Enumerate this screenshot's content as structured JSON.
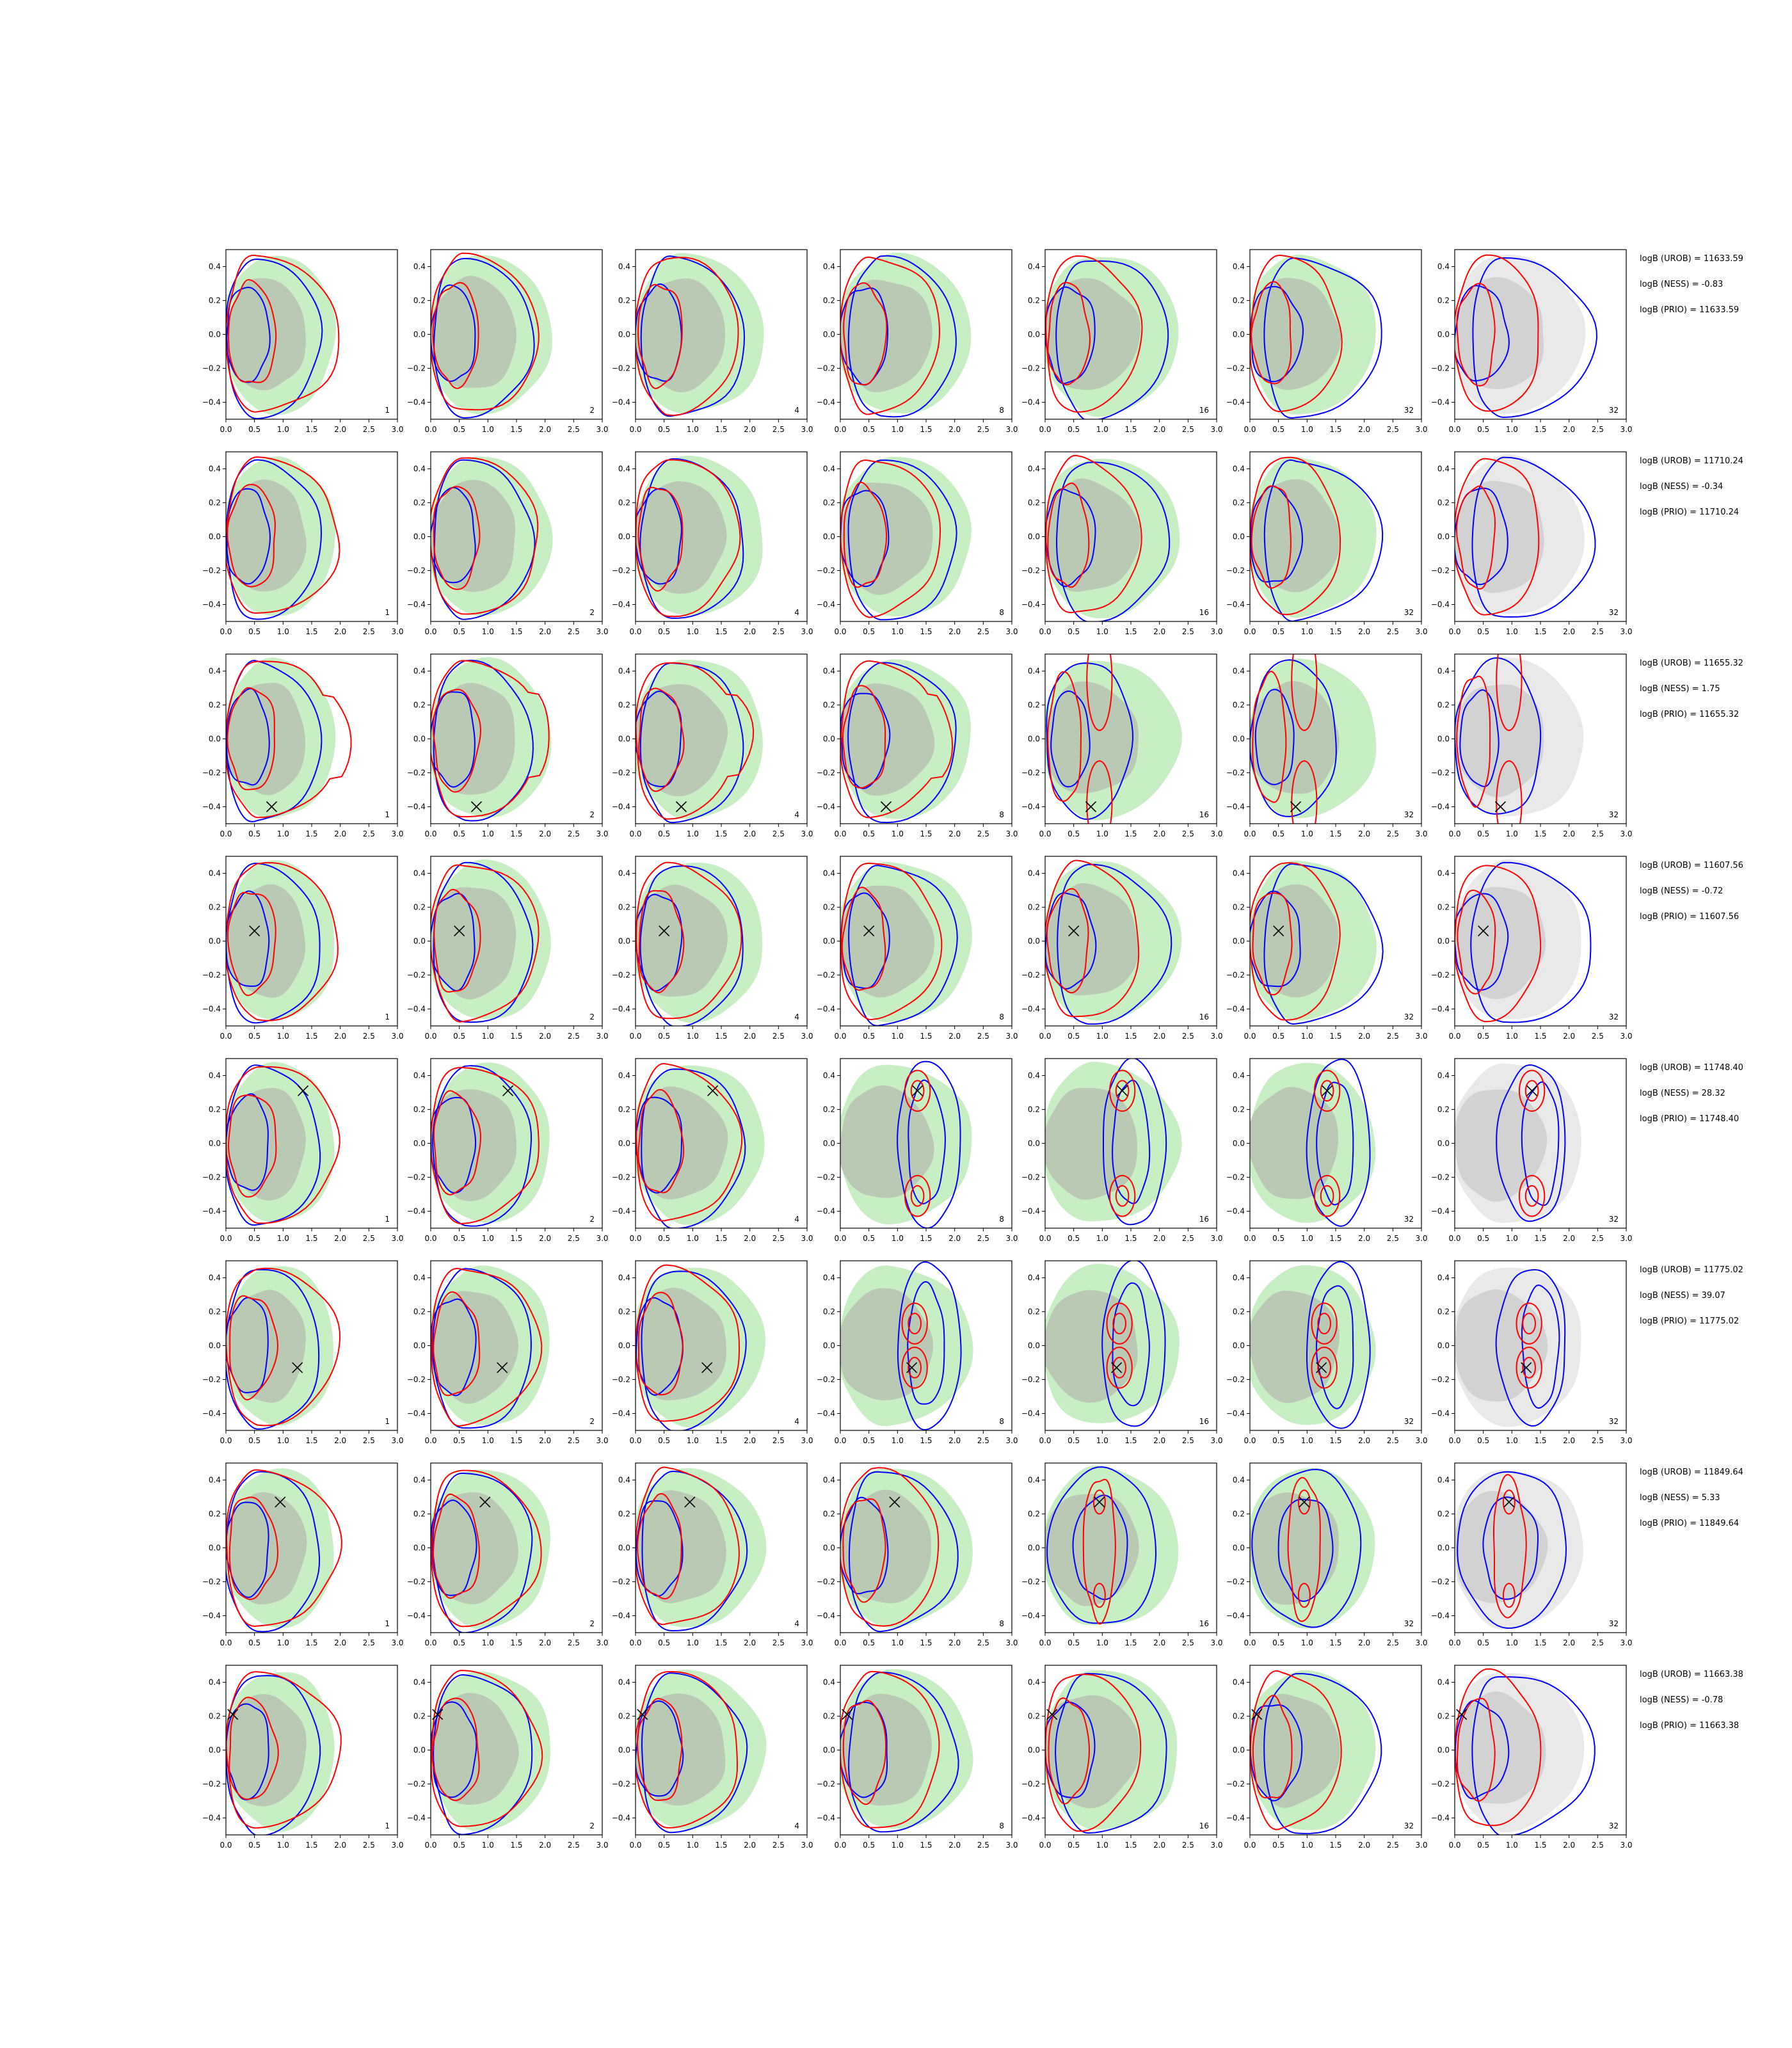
{
  "chart_data": {
    "type": "contour-grid",
    "rows": 8,
    "columns": 7,
    "xlim": [
      0.0,
      3.0
    ],
    "ylim": [
      -0.5,
      0.5
    ],
    "x_ticks": [
      0.0,
      0.5,
      1.0,
      1.5,
      2.0,
      2.5,
      3.0
    ],
    "y_ticks": [
      -0.4,
      -0.2,
      0.0,
      0.2,
      0.4
    ],
    "x_tick_labels": [
      "0.0",
      "0.5",
      "1.0",
      "1.5",
      "2.0",
      "2.5",
      "3.0"
    ],
    "y_tick_labels": [
      "−0.4",
      "−0.2",
      "0.0",
      "0.2",
      "0.4"
    ],
    "panel_tags": [
      "1",
      "2",
      "4",
      "8",
      "16",
      "32",
      "32"
    ],
    "colors": {
      "filled_region": "#c8efc4",
      "filled_region_inner": "#b9c9b4",
      "grey_region": "#e9e9e9",
      "grey_region_inner": "#d2d2d2",
      "blue_contour": "#0000ff",
      "red_contour": "#ff0000",
      "marker": "#000000"
    },
    "row_annotations": [
      {
        "urob": "logB (UROB) = 11633.59",
        "ness": "logB (NESS) = -0.83",
        "prio": "logB (PRIO) = 11633.59",
        "marker": null
      },
      {
        "urob": "logB (UROB) = 11710.24",
        "ness": "logB (NESS) = -0.34",
        "prio": "logB (PRIO) = 11710.24",
        "marker": null
      },
      {
        "urob": "logB (UROB) = 11655.32",
        "ness": "logB (NESS) = 1.75",
        "prio": "logB (PRIO) = 11655.32",
        "marker": [
          0.8,
          -0.4
        ]
      },
      {
        "urob": "logB (UROB) = 11607.56",
        "ness": "logB (NESS) = -0.72",
        "prio": "logB (PRIO) = 11607.56",
        "marker": [
          0.5,
          0.06
        ]
      },
      {
        "urob": "logB (UROB) = 11748.40",
        "ness": "logB (NESS) = 28.32",
        "prio": "logB (PRIO) = 11748.40",
        "marker": [
          1.35,
          0.31
        ]
      },
      {
        "urob": "logB (UROB) = 11775.02",
        "ness": "logB (NESS) = 39.07",
        "prio": "logB (PRIO) = 11775.02",
        "marker": [
          1.25,
          -0.13
        ]
      },
      {
        "urob": "logB (UROB) = 11849.64",
        "ness": "logB (NESS) = 5.33",
        "prio": "logB (PRIO) = 11849.64",
        "marker": [
          0.95,
          0.27
        ]
      },
      {
        "urob": "logB (UROB) = 11663.38",
        "ness": "logB (NESS) = -0.78",
        "prio": "logB (PRIO) = 11663.38",
        "marker": [
          0.12,
          0.21
        ]
      }
    ]
  }
}
